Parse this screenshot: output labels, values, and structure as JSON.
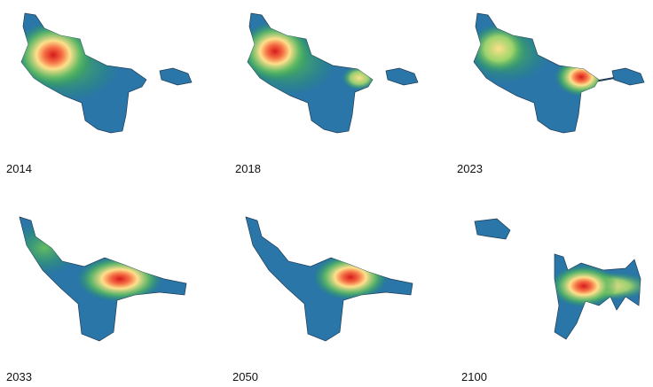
{
  "panels": [
    {
      "label": "2014"
    },
    {
      "label": "2018"
    },
    {
      "label": "2023"
    },
    {
      "label": "2033"
    },
    {
      "label": "2050"
    },
    {
      "label": "2100"
    }
  ]
}
